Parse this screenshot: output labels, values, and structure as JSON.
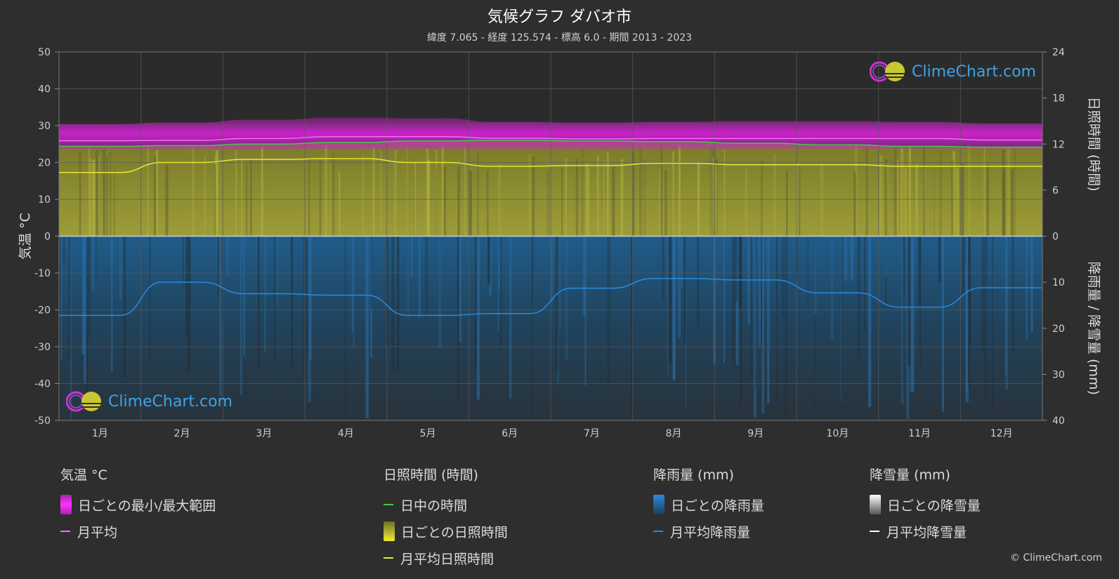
{
  "title": "気候グラフ ダバオ市",
  "subtitle": "緯度 7.065 - 経度 125.574 - 標高 6.0 - 期間 2013 - 2023",
  "chart_data": {
    "type": "area",
    "months": [
      "1月",
      "2月",
      "3月",
      "4月",
      "5月",
      "6月",
      "7月",
      "8月",
      "9月",
      "10月",
      "11月",
      "12月"
    ],
    "left_axis": {
      "label": "気温 °C",
      "ticks": [
        "50",
        "40",
        "30",
        "20",
        "10",
        "0",
        "-10",
        "-20",
        "-30",
        "-40",
        "-50"
      ],
      "range": [
        -50,
        50
      ]
    },
    "right_axis_top": {
      "label": "日照時間 (時間)",
      "ticks": [
        "24",
        "18",
        "12",
        "6",
        "0"
      ],
      "range": [
        0,
        24
      ]
    },
    "right_axis_bottom": {
      "label": "降雨量 / 降雪量 (mm)",
      "ticks": [
        "10",
        "20",
        "30",
        "40"
      ],
      "range": [
        0,
        40
      ]
    },
    "series": [
      {
        "name": "月平均",
        "unit": "°C",
        "color": "#ff66ff",
        "values": [
          25.9,
          26.0,
          26.5,
          27.0,
          27.0,
          26.6,
          26.4,
          26.5,
          26.5,
          26.5,
          26.5,
          26.1
        ]
      },
      {
        "name": "日ごとの最小/最大範囲",
        "unit": "°C",
        "color": "#cc22cc",
        "min": [
          23.6,
          23.6,
          23.9,
          24.4,
          24.6,
          24.4,
          24.0,
          24.2,
          24.2,
          24.1,
          24.0,
          23.8
        ],
        "max": [
          30.4,
          30.8,
          31.6,
          32.2,
          32.0,
          31.0,
          30.8,
          31.0,
          31.2,
          31.2,
          31.0,
          30.6
        ]
      },
      {
        "name": "日中の時間",
        "unit": "時間",
        "color": "#44cc44",
        "values": [
          11.7,
          11.8,
          12.0,
          12.2,
          12.4,
          12.5,
          12.4,
          12.3,
          12.1,
          11.9,
          11.7,
          11.6
        ]
      },
      {
        "name": "月平均日照時間",
        "unit": "時間",
        "color": "#e8e830",
        "values": [
          8.3,
          9.6,
          10.0,
          10.1,
          9.6,
          9.1,
          9.2,
          9.5,
          9.3,
          9.3,
          9.1,
          9.1
        ]
      },
      {
        "name": "月平均降雨量",
        "unit": "mm",
        "color": "#2a8ae0",
        "values": [
          17.2,
          10.0,
          12.5,
          12.8,
          17.2,
          16.8,
          11.3,
          9.2,
          9.5,
          12.3,
          15.4,
          11.2
        ]
      }
    ],
    "grid": true
  },
  "legend": {
    "temp": {
      "heading": "気温 °C",
      "items": [
        "日ごとの最小/最大範囲",
        "月平均"
      ]
    },
    "sun": {
      "heading": "日照時間 (時間)",
      "items": [
        "日中の時間",
        "日ごとの日照時間",
        "月平均日照時間"
      ]
    },
    "rain": {
      "heading": "降雨量 (mm)",
      "items": [
        "日ごとの降雨量",
        "月平均降雨量"
      ]
    },
    "snow": {
      "heading": "降雪量 (mm)",
      "items": [
        "日ごとの降雪量",
        "月平均降雪量"
      ]
    }
  },
  "logo_text": "ClimeChart.com",
  "copyright": "© ClimeChart.com",
  "colors": {
    "background": "#2e2e2e",
    "temp_range": "#cc22cc",
    "sunshine_fill": "#9a9a2a",
    "rain_fill": "#1f5f8f",
    "daylight": "#44cc44",
    "brand": "#3fa3e6"
  }
}
